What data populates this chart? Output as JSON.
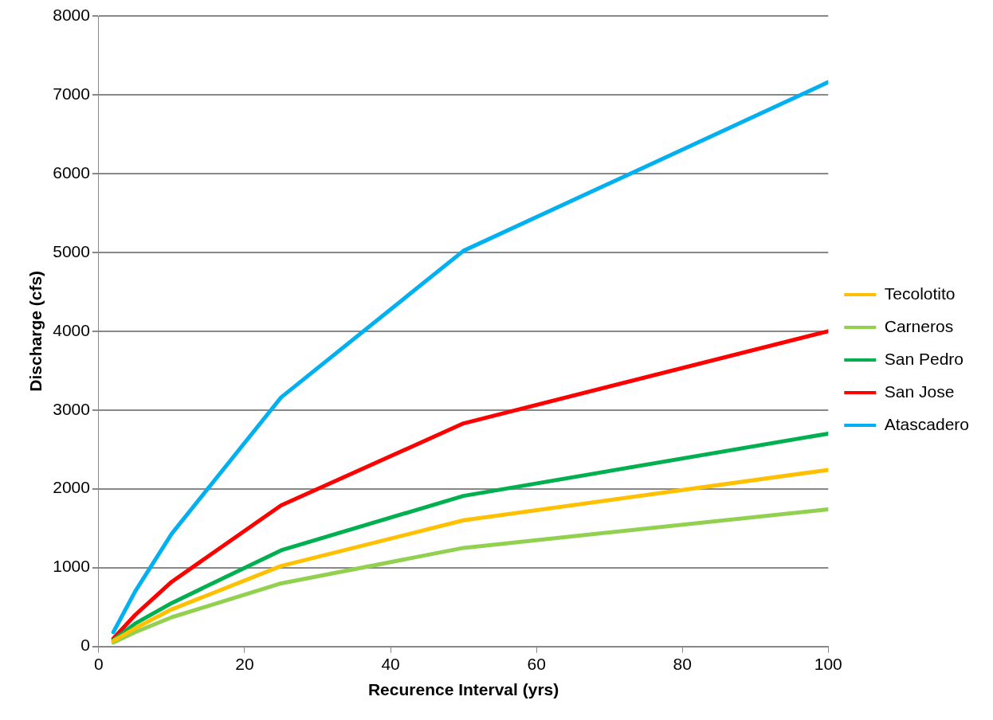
{
  "chart_data": {
    "type": "line",
    "xlabel": "Recurence Interval (yrs)",
    "ylabel": "Discharge (cfs)",
    "x": [
      2,
      5,
      10,
      25,
      50,
      100
    ],
    "xlim": [
      0,
      100
    ],
    "xticks": [
      0,
      20,
      40,
      60,
      80,
      100
    ],
    "ylim": [
      0,
      8000
    ],
    "yticks": [
      0,
      1000,
      2000,
      3000,
      4000,
      5000,
      6000,
      7000,
      8000
    ],
    "grid": "y",
    "legend": "right",
    "marker": "none",
    "line_style": "solid",
    "series": [
      {
        "name": "Tecolotito",
        "color": "#ffc000",
        "values": [
          70,
          230,
          470,
          1020,
          1600,
          2240
        ]
      },
      {
        "name": "Carneros",
        "color": "#92d050",
        "values": [
          50,
          180,
          370,
          800,
          1250,
          1740
        ]
      },
      {
        "name": "San Pedro",
        "color": "#00b050",
        "values": [
          80,
          290,
          550,
          1220,
          1910,
          2700
        ]
      },
      {
        "name": "San Jose",
        "color": "#ff0000",
        "values": [
          100,
          400,
          820,
          1790,
          2830,
          4000
        ]
      },
      {
        "name": "Atascadero",
        "color": "#00b0f0",
        "values": [
          180,
          700,
          1430,
          3160,
          5020,
          7160
        ]
      }
    ]
  }
}
